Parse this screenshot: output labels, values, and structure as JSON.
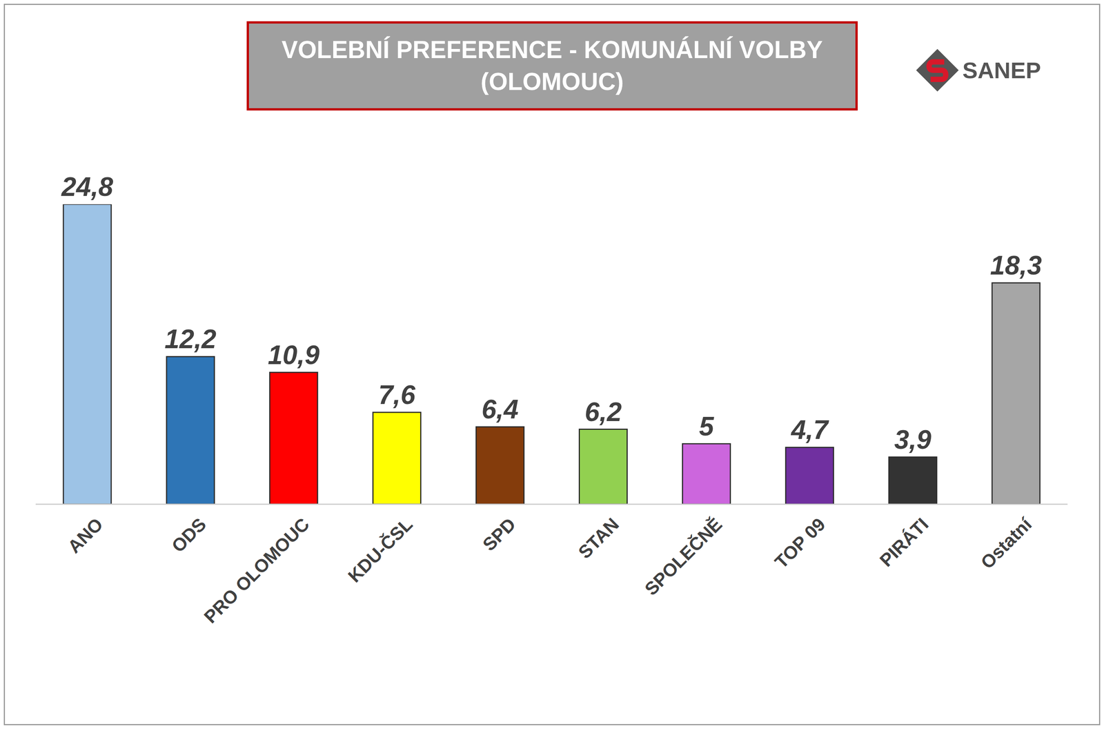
{
  "chart_data": {
    "type": "bar",
    "title": "VOLEBNÍ PREFERENCE - KOMUNÁLNÍ VOLBY (OLOMOUC)",
    "annotations": [
      "SANEP"
    ],
    "categories": [
      "ANO",
      "ODS",
      "PRO OLOMOUC",
      "KDU-ČSL",
      "SPD",
      "STAN",
      "SPOLEČNĚ",
      "TOP 09",
      "PIRÁTI",
      "Ostatní"
    ],
    "values": [
      24.8,
      12.2,
      10.9,
      7.6,
      6.4,
      6.2,
      5,
      4.7,
      3.9,
      18.3
    ],
    "value_labels": [
      "24,8",
      "12,2",
      "10,9",
      "7,6",
      "6,4",
      "6,2",
      "5",
      "4,7",
      "3,9",
      "18,3"
    ],
    "colors": [
      "#9dc3e6",
      "#2e75b6",
      "#ff0000",
      "#ffff00",
      "#843c0c",
      "#92d050",
      "#cc66dd",
      "#7030a0",
      "#333333",
      "#a6a6a6"
    ],
    "data_labels": true,
    "tick_labels": "x",
    "grid": false
  }
}
